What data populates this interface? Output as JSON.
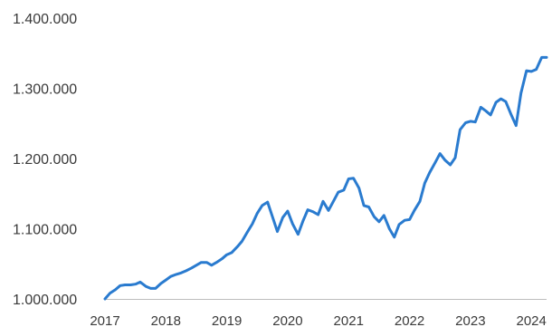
{
  "chart_data": {
    "type": "line",
    "title": "",
    "xlabel": "",
    "ylabel": "",
    "xlim": [
      2017,
      2024.25
    ],
    "ylim": [
      1000000,
      1400000
    ],
    "y_ticks": [
      {
        "value": 1000000,
        "label": "1.000.000"
      },
      {
        "value": 1100000,
        "label": "1.100.000"
      },
      {
        "value": 1200000,
        "label": "1.200.000"
      },
      {
        "value": 1300000,
        "label": "1.300.000"
      },
      {
        "value": 1400000,
        "label": "1.400.000"
      }
    ],
    "x_ticks": [
      {
        "value": 2017,
        "label": "2017"
      },
      {
        "value": 2018,
        "label": "2018"
      },
      {
        "value": 2019,
        "label": "2019"
      },
      {
        "value": 2020,
        "label": "2020"
      },
      {
        "value": 2021,
        "label": "2021"
      },
      {
        "value": 2022,
        "label": "2022"
      },
      {
        "value": 2023,
        "label": "2023"
      },
      {
        "value": 2024,
        "label": "2024"
      }
    ],
    "grid": false,
    "series": [
      {
        "color": "#2a7bcf",
        "x": [
          2017.0,
          2017.08,
          2017.17,
          2017.25,
          2017.33,
          2017.42,
          2017.5,
          2017.58,
          2017.67,
          2017.75,
          2017.83,
          2017.92,
          2018.0,
          2018.08,
          2018.17,
          2018.25,
          2018.33,
          2018.42,
          2018.5,
          2018.58,
          2018.67,
          2018.75,
          2018.83,
          2018.92,
          2019.0,
          2019.08,
          2019.17,
          2019.25,
          2019.33,
          2019.42,
          2019.5,
          2019.58,
          2019.67,
          2019.75,
          2019.83,
          2019.92,
          2020.0,
          2020.08,
          2020.17,
          2020.25,
          2020.33,
          2020.42,
          2020.5,
          2020.58,
          2020.67,
          2020.75,
          2020.83,
          2020.92,
          2021.0,
          2021.08,
          2021.17,
          2021.25,
          2021.33,
          2021.42,
          2021.5,
          2021.58,
          2021.67,
          2021.75,
          2021.83,
          2021.92,
          2022.0,
          2022.08,
          2022.17,
          2022.25,
          2022.33,
          2022.42,
          2022.5,
          2022.58,
          2022.67,
          2022.75,
          2022.83,
          2022.92,
          2023.0,
          2023.08,
          2023.17,
          2023.25,
          2023.33,
          2023.42,
          2023.5,
          2023.58,
          2023.67,
          2023.75,
          2023.83,
          2023.92,
          2024.0,
          2024.08,
          2024.17,
          2024.25
        ],
        "y": [
          1000000,
          1008000,
          1013000,
          1019000,
          1020000,
          1020000,
          1021000,
          1024000,
          1018000,
          1015000,
          1015000,
          1022000,
          1027000,
          1032000,
          1035000,
          1037000,
          1040000,
          1044000,
          1048000,
          1052000,
          1052000,
          1048000,
          1052000,
          1057000,
          1063000,
          1066000,
          1074000,
          1082000,
          1094000,
          1107000,
          1122000,
          1133000,
          1138000,
          1117000,
          1096000,
          1116000,
          1125000,
          1107000,
          1092000,
          1111000,
          1127000,
          1124000,
          1120000,
          1139000,
          1126000,
          1139000,
          1152000,
          1155000,
          1171000,
          1172000,
          1158000,
          1133000,
          1131000,
          1117000,
          1110000,
          1119000,
          1100000,
          1088000,
          1106000,
          1112000,
          1113000,
          1126000,
          1139000,
          1165000,
          1180000,
          1194000,
          1207000,
          1198000,
          1191000,
          1201000,
          1241000,
          1251000,
          1253000,
          1252000,
          1273000,
          1268000,
          1262000,
          1280000,
          1285000,
          1281000,
          1262000,
          1247000,
          1293000,
          1325000,
          1324000,
          1327000,
          1344000,
          1344000
        ]
      }
    ]
  }
}
